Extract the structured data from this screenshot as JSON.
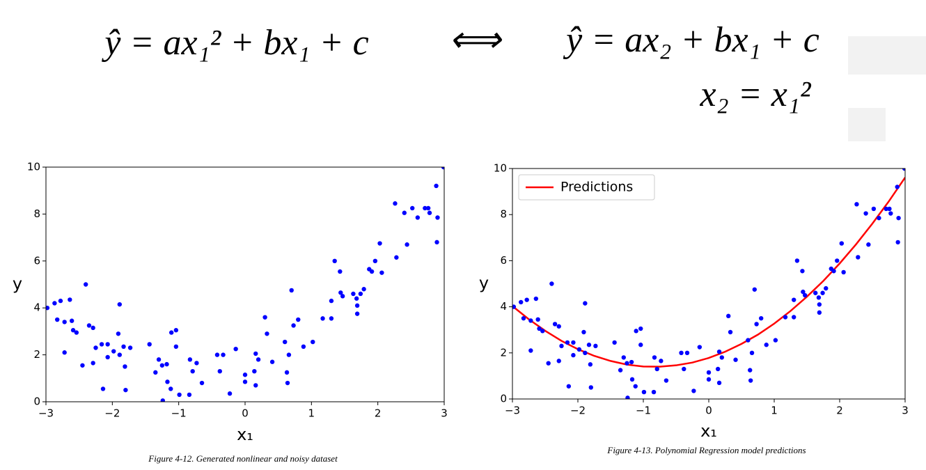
{
  "equations": {
    "left": "ŷ = ax₁² + bx₁ + c",
    "arrow": "⟺",
    "right": "ŷ = ax₂ + bx₁ + c",
    "definition": "x₂ = x₁²"
  },
  "chart_data": [
    {
      "type": "scatter",
      "caption": "Figure 4-12. Generated nonlinear and noisy dataset",
      "xlabel": "x₁",
      "ylabel": "y",
      "color": "#0000ff",
      "x": [
        -2.98,
        -2.87,
        -2.83,
        -2.78,
        -2.72,
        -2.72,
        -2.64,
        -2.61,
        -2.59,
        -2.54,
        -2.45,
        -2.4,
        -2.35,
        -2.29,
        -2.29,
        -2.25,
        -2.16,
        -2.14,
        -2.07,
        -2.07,
        -1.98,
        -1.91,
        -1.89,
        -1.89,
        -1.83,
        -1.81,
        -1.8,
        -1.73,
        -1.44,
        -1.35,
        -1.3,
        -1.25,
        -1.24,
        -1.18,
        -1.17,
        -1.12,
        -1.11,
        -1.04,
        -1.04,
        -0.99,
        -0.84,
        -0.83,
        -0.79,
        -0.73,
        -0.65,
        -0.42,
        -0.38,
        -0.33,
        -0.23,
        -0.14,
        0.0,
        0.0,
        0.14,
        0.16,
        0.16,
        0.2,
        0.3,
        0.33,
        0.41,
        0.6,
        0.63,
        0.64,
        0.66,
        0.7,
        0.73,
        0.8,
        0.88,
        1.02,
        1.17,
        1.3,
        1.3,
        1.35,
        1.43,
        1.44,
        1.47,
        1.63,
        1.68,
        1.69,
        1.69,
        1.74,
        1.79,
        1.87,
        1.91,
        1.96,
        2.03,
        2.06,
        2.26,
        2.28,
        2.4,
        2.44,
        2.52,
        2.6,
        2.71,
        2.76,
        2.78,
        2.88,
        2.89,
        2.9,
        2.99
      ],
      "values": [
        4.0,
        4.2,
        3.5,
        4.3,
        2.1,
        3.4,
        4.35,
        3.45,
        3.05,
        2.95,
        1.55,
        5.0,
        3.25,
        3.15,
        1.65,
        2.3,
        2.45,
        0.55,
        2.45,
        1.9,
        2.15,
        2.9,
        4.15,
        2.0,
        2.35,
        1.5,
        0.5,
        2.3,
        2.45,
        1.25,
        1.8,
        1.55,
        0.05,
        1.6,
        0.85,
        0.55,
        2.95,
        2.35,
        3.05,
        0.3,
        0.3,
        1.8,
        1.3,
        1.65,
        0.8,
        2.0,
        1.3,
        2.0,
        0.35,
        2.25,
        1.15,
        0.85,
        1.3,
        2.05,
        0.7,
        1.8,
        3.6,
        2.9,
        1.7,
        2.55,
        1.25,
        0.8,
        2.0,
        4.75,
        3.25,
        3.5,
        2.35,
        2.55,
        3.55,
        3.55,
        4.3,
        6.0,
        5.55,
        4.65,
        4.5,
        4.6,
        4.4,
        4.1,
        3.75,
        4.6,
        4.8,
        5.65,
        5.55,
        6.0,
        6.75,
        5.5,
        8.45,
        6.15,
        8.05,
        6.7,
        8.25,
        7.85,
        8.25,
        8.25,
        8.05,
        9.2,
        6.8,
        7.85,
        10.0
      ],
      "xlim": [
        -3,
        3
      ],
      "xticks": [
        {
          "value": -3,
          "label": "−3"
        },
        {
          "value": -2,
          "label": "−2"
        },
        {
          "value": -1,
          "label": "−1"
        },
        0,
        1,
        2,
        3
      ],
      "ylim": [
        0,
        10
      ],
      "yticks": [
        0,
        2,
        4,
        6,
        8,
        10
      ]
    },
    {
      "type": "scatter",
      "caption": "Figure 4-13. Polynomial Regression model predictions",
      "xlabel": "x₁",
      "ylabel": "y",
      "color": "#0000ff",
      "legend": "upper left",
      "x": [
        -2.98,
        -2.87,
        -2.83,
        -2.78,
        -2.72,
        -2.72,
        -2.64,
        -2.61,
        -2.59,
        -2.54,
        -2.45,
        -2.4,
        -2.35,
        -2.29,
        -2.29,
        -2.25,
        -2.16,
        -2.14,
        -2.07,
        -2.07,
        -1.98,
        -1.91,
        -1.89,
        -1.89,
        -1.83,
        -1.81,
        -1.8,
        -1.73,
        -1.44,
        -1.35,
        -1.3,
        -1.25,
        -1.24,
        -1.18,
        -1.17,
        -1.12,
        -1.11,
        -1.04,
        -1.04,
        -0.99,
        -0.84,
        -0.83,
        -0.79,
        -0.73,
        -0.65,
        -0.42,
        -0.38,
        -0.33,
        -0.23,
        -0.14,
        0.0,
        0.0,
        0.14,
        0.16,
        0.16,
        0.2,
        0.3,
        0.33,
        0.41,
        0.6,
        0.63,
        0.64,
        0.66,
        0.7,
        0.73,
        0.8,
        0.88,
        1.02,
        1.17,
        1.3,
        1.3,
        1.35,
        1.43,
        1.44,
        1.47,
        1.63,
        1.68,
        1.69,
        1.69,
        1.74,
        1.79,
        1.87,
        1.91,
        1.96,
        2.03,
        2.06,
        2.26,
        2.28,
        2.4,
        2.44,
        2.52,
        2.6,
        2.71,
        2.76,
        2.78,
        2.88,
        2.89,
        2.9,
        2.99
      ],
      "values": [
        4.0,
        4.2,
        3.5,
        4.3,
        2.1,
        3.4,
        4.35,
        3.45,
        3.05,
        2.95,
        1.55,
        5.0,
        3.25,
        3.15,
        1.65,
        2.3,
        2.45,
        0.55,
        2.45,
        1.9,
        2.15,
        2.9,
        4.15,
        2.0,
        2.35,
        1.5,
        0.5,
        2.3,
        2.45,
        1.25,
        1.8,
        1.55,
        0.05,
        1.6,
        0.85,
        0.55,
        2.95,
        2.35,
        3.05,
        0.3,
        0.3,
        1.8,
        1.3,
        1.65,
        0.8,
        2.0,
        1.3,
        2.0,
        0.35,
        2.25,
        1.15,
        0.85,
        1.3,
        2.05,
        0.7,
        1.8,
        3.6,
        2.9,
        1.7,
        2.55,
        1.25,
        0.8,
        2.0,
        4.75,
        3.25,
        3.5,
        2.35,
        2.55,
        3.55,
        3.55,
        4.3,
        6.0,
        5.55,
        4.65,
        4.5,
        4.6,
        4.4,
        4.1,
        3.75,
        4.6,
        4.8,
        5.65,
        5.55,
        6.0,
        6.75,
        5.5,
        8.45,
        6.15,
        8.05,
        6.7,
        8.25,
        7.85,
        8.25,
        8.25,
        8.05,
        9.2,
        6.8,
        7.85,
        10.0
      ],
      "series": [
        {
          "name": "Predictions",
          "color": "#ff0000",
          "x": [
            -3,
            -2.75,
            -2.5,
            -2.25,
            -2,
            -1.75,
            -1.5,
            -1.25,
            -1,
            -0.75,
            -0.5,
            -0.25,
            0,
            0.25,
            0.5,
            0.75,
            1,
            1.25,
            1.5,
            1.75,
            2,
            2.25,
            2.5,
            2.75,
            3
          ],
          "values": [
            4.03,
            3.46,
            2.96,
            2.52,
            2.16,
            1.87,
            1.65,
            1.49,
            1.41,
            1.4,
            1.46,
            1.58,
            1.78,
            2.05,
            2.39,
            2.79,
            3.27,
            3.82,
            4.44,
            5.12,
            5.88,
            6.71,
            7.61,
            8.57,
            9.61
          ]
        }
      ],
      "xlim": [
        -3,
        3
      ],
      "xticks": [
        {
          "value": -3,
          "label": "−3"
        },
        {
          "value": -2,
          "label": "−2"
        },
        {
          "value": -1,
          "label": "−1"
        },
        0,
        1,
        2,
        3
      ],
      "ylim": [
        0,
        10
      ],
      "yticks": [
        0,
        2,
        4,
        6,
        8,
        10
      ]
    }
  ]
}
